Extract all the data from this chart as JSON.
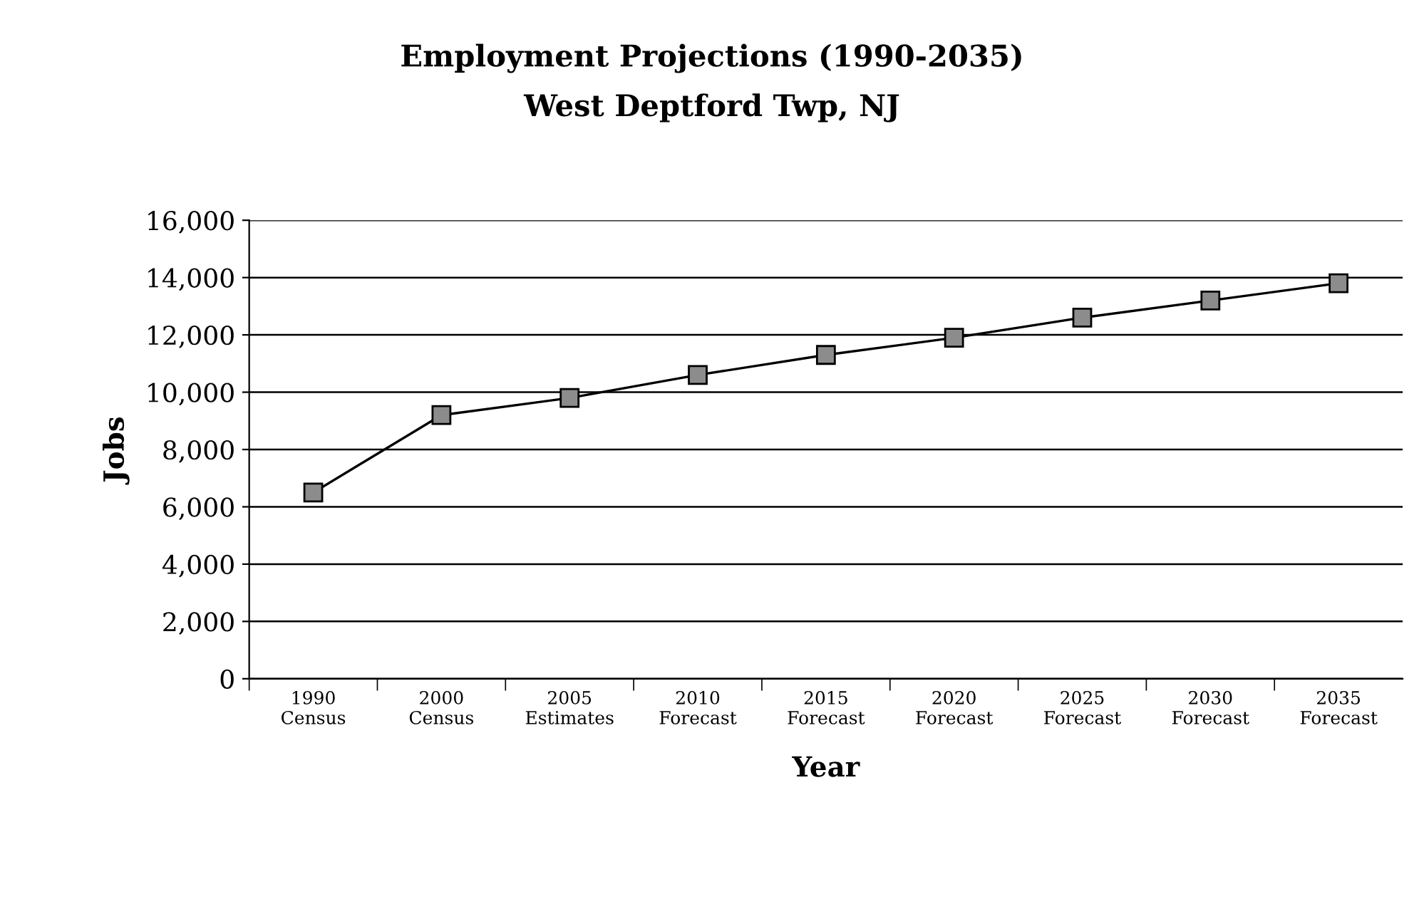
{
  "chart_data": {
    "type": "line",
    "title": "Employment Projections (1990-2035)",
    "subtitle": "West Deptford Twp, NJ",
    "xlabel": "Year",
    "ylabel": "Jobs",
    "categories": [
      "1990\nCensus",
      "2000\nCensus",
      "2005\nEstimates",
      "2010\nForecast",
      "2015\nForecast",
      "2020\nForecast",
      "2025\nForecast",
      "2030\nForecast",
      "2035\nForecast"
    ],
    "series": [
      {
        "color": "#000000",
        "values": [
          6500,
          9200,
          9800,
          10600,
          11300,
          11900,
          12600,
          13200,
          13800
        ]
      }
    ],
    "ylim": [
      0,
      16000
    ],
    "yticks": [
      {
        "value": 0,
        "label": "0"
      },
      {
        "value": 2000,
        "label": "2,000"
      },
      {
        "value": 4000,
        "label": "4,000"
      },
      {
        "value": 6000,
        "label": "6,000"
      },
      {
        "value": 8000,
        "label": "8,000"
      },
      {
        "value": 10000,
        "label": "10,000"
      },
      {
        "value": 12000,
        "label": "12,000"
      },
      {
        "value": 14000,
        "label": "14,000"
      },
      {
        "value": 16000,
        "label": "16,000"
      }
    ],
    "grid": "y",
    "marker": "square",
    "line_style": "solid",
    "legend": false
  }
}
